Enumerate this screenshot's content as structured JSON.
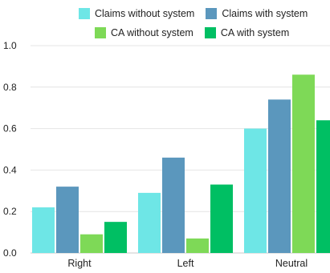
{
  "chart_data": {
    "type": "bar",
    "categories": [
      "Right",
      "Left",
      "Neutral"
    ],
    "series": [
      {
        "name": "Claims without system",
        "color": "#6EE6E6",
        "values": [
          0.22,
          0.29,
          0.6
        ]
      },
      {
        "name": "Claims with system",
        "color": "#5B97BD",
        "values": [
          0.32,
          0.46,
          0.74
        ]
      },
      {
        "name": "CA without system",
        "color": "#7ED957",
        "values": [
          0.09,
          0.07,
          0.86
        ]
      },
      {
        "name": "CA with system",
        "color": "#00BF63",
        "values": [
          0.15,
          0.33,
          0.64
        ]
      }
    ],
    "ylim": [
      0,
      1.0
    ],
    "yticks": [
      "0.0",
      "0.2",
      "0.4",
      "0.6",
      "0.8",
      "1.0"
    ],
    "grid": true,
    "legend_position": "top"
  }
}
